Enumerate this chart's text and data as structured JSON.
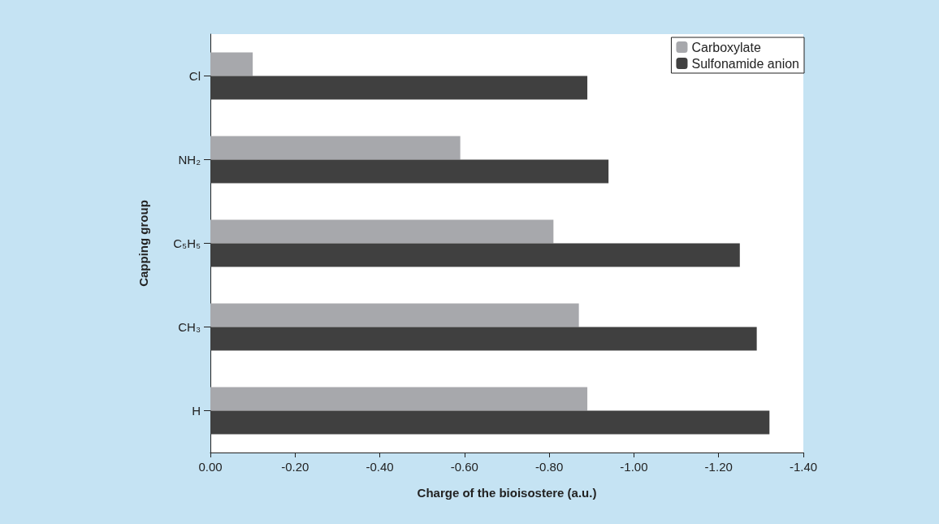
{
  "chart_data": {
    "type": "bar",
    "orientation": "horizontal",
    "xlabel": "Charge of the bioisostere (a.u.)",
    "ylabel": "Capping group",
    "categories": [
      "Cl",
      "NH₂",
      "C₅H₅",
      "CH₃",
      "H"
    ],
    "series": [
      {
        "name": "Carboxylate",
        "color": "#a7a8ac",
        "values": [
          -0.1,
          -0.59,
          -0.81,
          -0.87,
          -0.89
        ]
      },
      {
        "name": "Sulfonamide anion",
        "color": "#404040",
        "values": [
          -0.89,
          -0.94,
          -1.25,
          -1.29,
          -1.32
        ]
      }
    ],
    "xlim": [
      0,
      -1.4
    ],
    "xticks": [
      {
        "value": 0,
        "label": "0.00"
      },
      {
        "value": -0.2,
        "label": "-0.20"
      },
      {
        "value": -0.4,
        "label": "-0.40"
      },
      {
        "value": -0.6,
        "label": "-0.60"
      },
      {
        "value": -0.8,
        "label": "-0.80"
      },
      {
        "value": -1.0,
        "label": "-1.00"
      },
      {
        "value": -1.2,
        "label": "-1.20"
      },
      {
        "value": -1.4,
        "label": "-1.40"
      }
    ],
    "grid": false,
    "legend": "top right"
  }
}
